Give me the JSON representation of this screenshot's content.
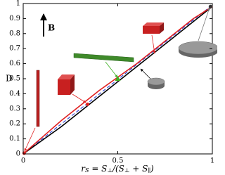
{
  "chart_data": {
    "type": "line",
    "y_label": "D",
    "x_label_parts": [
      "r",
      "S",
      " = S",
      "⊥",
      "/(S",
      "⊥",
      " + S",
      "∥",
      ")"
    ],
    "annotation": "B",
    "xlim": [
      0,
      1
    ],
    "ylim": [
      0,
      1
    ],
    "xticks": [
      0,
      0.5,
      1
    ],
    "yticks": [
      0,
      0.1,
      0.2,
      0.3,
      0.4,
      0.5,
      0.6,
      0.7,
      0.8,
      0.9,
      1
    ],
    "series": [
      {
        "color": "#3a4fd8",
        "dash": true,
        "x": [
          0,
          1
        ],
        "values": [
          0,
          0.99
        ]
      },
      {
        "color": "#000000",
        "dash": false,
        "x": [
          0,
          0.1,
          0.2,
          0.3,
          0.4,
          0.5,
          0.6,
          0.7,
          0.8,
          0.9,
          1
        ],
        "values": [
          0,
          0.09,
          0.18,
          0.28,
          0.38,
          0.48,
          0.58,
          0.68,
          0.78,
          0.88,
          0.98
        ]
      },
      {
        "color": "#e02020",
        "dash": false,
        "x": [
          0,
          0.1,
          0.2,
          0.3,
          0.4,
          0.5,
          0.6,
          0.7,
          0.8,
          0.9,
          1
        ],
        "values": [
          0,
          0.11,
          0.22,
          0.32,
          0.42,
          0.51,
          0.6,
          0.7,
          0.8,
          0.9,
          0.98
        ]
      }
    ],
    "markers": [
      {
        "x": 0.005,
        "y": 0.005,
        "color": "#e02020",
        "shape": "circle"
      },
      {
        "x": 0.34,
        "y": 0.33,
        "color": "#e02020",
        "shape": "circle"
      },
      {
        "x": 0.5,
        "y": 0.5,
        "color": "#3cb020",
        "shape": "triangle"
      },
      {
        "x": 0.99,
        "y": 0.98,
        "color": "#333333",
        "shape": "circle"
      }
    ]
  }
}
